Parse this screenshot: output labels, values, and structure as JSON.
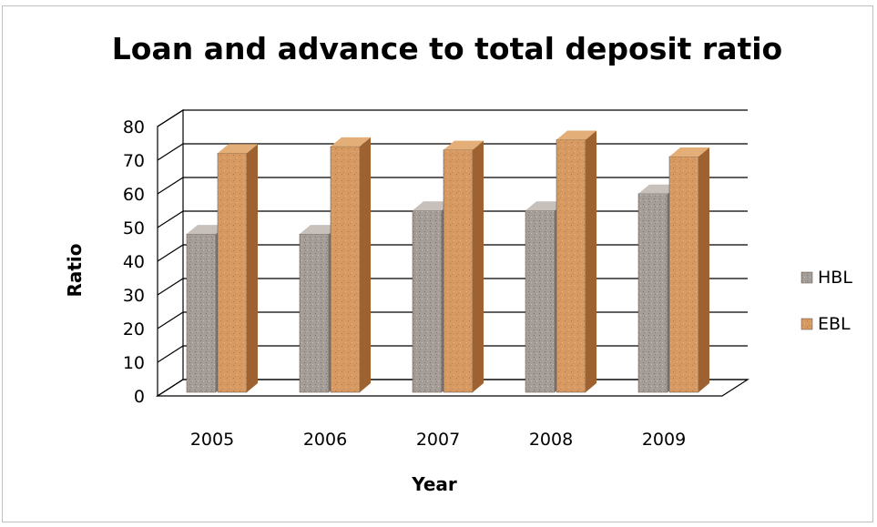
{
  "chart_data": {
    "type": "bar",
    "title": "Loan and advance to total deposit ratio",
    "xlabel": "Year",
    "ylabel": "Ratio",
    "categories": [
      "2005",
      "2006",
      "2007",
      "2008",
      "2009"
    ],
    "series": [
      {
        "name": "HBL",
        "values": [
          47,
          47,
          54,
          54,
          59
        ],
        "color": "#a8a09c"
      },
      {
        "name": "EBL",
        "values": [
          71,
          73,
          72,
          75,
          70
        ],
        "color": "#d9a06a"
      }
    ],
    "ylim": [
      0,
      80
    ],
    "yticks": [
      0,
      10,
      20,
      30,
      40,
      50,
      60,
      70,
      80
    ],
    "grid": true,
    "legend": "right",
    "style": "3d-clustered-column"
  }
}
